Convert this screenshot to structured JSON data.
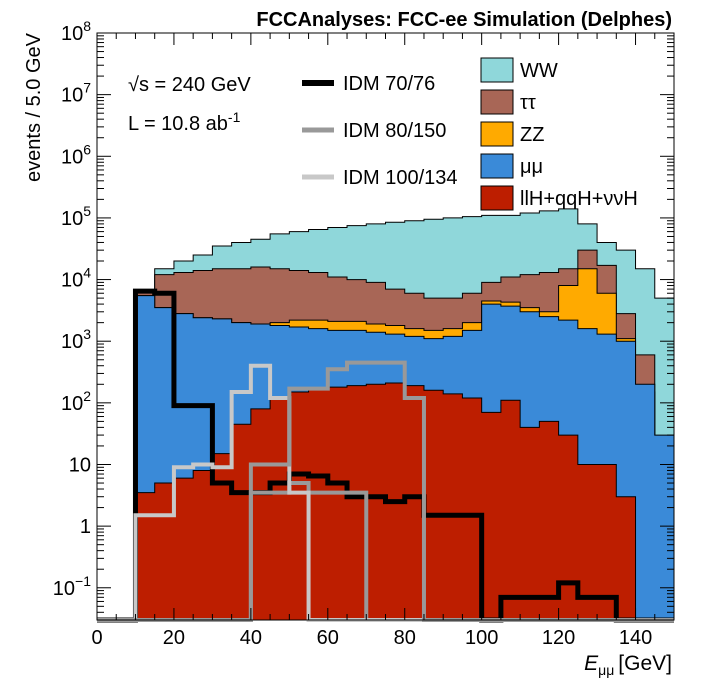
{
  "chart_data": {
    "type": "stacked-histogram",
    "title": "FCCAnalyses: FCC-ee Simulation (Delphes)",
    "xlabel": "E",
    "xlabel_sub": "μμ",
    "xlabel_unit": "[GeV]",
    "ylabel": "events / 5.0 GeV",
    "yscale": "log",
    "xlim": [
      0,
      150
    ],
    "ylim": [
      0.03,
      100000000
    ],
    "bin_width": 5,
    "bin_edges_start": 0,
    "x_ticks": [
      0,
      20,
      40,
      60,
      80,
      100,
      120,
      140
    ],
    "x_tick_labels": [
      "0",
      "20",
      "40",
      "60",
      "80",
      "100",
      "120",
      "140"
    ],
    "y_ticks": [
      {
        "value": 0.1,
        "base": "10",
        "exp": "−1"
      },
      {
        "value": 1,
        "base": "1",
        "exp": ""
      },
      {
        "value": 10,
        "base": "10",
        "exp": ""
      },
      {
        "value": 100,
        "base": "10",
        "exp": "2"
      },
      {
        "value": 1000,
        "base": "10",
        "exp": "3"
      },
      {
        "value": 10000,
        "base": "10",
        "exp": "4"
      },
      {
        "value": 100000,
        "base": "10",
        "exp": "5"
      },
      {
        "value": 1000000,
        "base": "10",
        "exp": "6"
      },
      {
        "value": 10000000,
        "base": "10",
        "exp": "7"
      },
      {
        "value": 100000000,
        "base": "10",
        "exp": "8"
      }
    ],
    "stack_cumulative": [
      {
        "name": "llH+qqH+ννH",
        "color": "#bd1e00",
        "values": [
          0,
          0,
          3.5,
          5,
          6,
          8,
          15,
          45,
          80,
          120,
          150,
          170,
          180,
          190,
          200,
          210,
          190,
          160,
          140,
          120,
          70,
          110,
          40,
          50,
          30,
          10,
          10,
          3,
          0,
          0
        ]
      },
      {
        "name": "μμ",
        "color": "#3a8ad8",
        "values": [
          0,
          0,
          5500,
          3500,
          2800,
          2400,
          2300,
          2000,
          1900,
          1800,
          1700,
          1600,
          1500,
          1500,
          1400,
          1300,
          1200,
          1100,
          1200,
          1500,
          4000,
          3700,
          3000,
          2500,
          2200,
          1600,
          1300,
          1000,
          200,
          30
        ]
      },
      {
        "name": "ZZ",
        "color": "#ffaa00",
        "values": [
          0,
          0,
          5500,
          3500,
          2800,
          2400,
          2300,
          2000,
          1900,
          2000,
          2200,
          2200,
          2100,
          2100,
          1900,
          1800,
          1600,
          1500,
          1600,
          2000,
          4500,
          4300,
          3500,
          3000,
          8000,
          15000,
          6000,
          1100,
          150,
          0.9
        ]
      },
      {
        "name": "ττ",
        "color": "#a86656",
        "values": [
          0,
          0,
          6500,
          12000,
          13000,
          14000,
          15000,
          15000,
          16000,
          15000,
          14000,
          13000,
          11000,
          10000,
          9000,
          7000,
          6000,
          5000,
          5000,
          6000,
          9000,
          11000,
          12000,
          13000,
          15000,
          30000,
          17000,
          2800,
          600,
          20
        ]
      },
      {
        "name": "WW",
        "color": "#8fd7da",
        "values": [
          0,
          0,
          6500,
          15000,
          20000,
          25000,
          35000,
          40000,
          45000,
          55000,
          60000,
          65000,
          70000,
          75000,
          80000,
          85000,
          90000,
          95000,
          100000,
          105000,
          110000,
          110000,
          120000,
          130000,
          140000,
          80000,
          40000,
          30000,
          15000,
          5000
        ]
      }
    ],
    "signals": [
      {
        "name": "IDM 70/76",
        "color": "#000000",
        "width": 5,
        "values": [
          0,
          0,
          6500,
          6000,
          90,
          90,
          5,
          3.5,
          3.5,
          5,
          7,
          6.5,
          5,
          3,
          3,
          2.5,
          3,
          1.5,
          1.5,
          1.5,
          0.03,
          0.07,
          0.07,
          0.07,
          0.12,
          0.07,
          0.07,
          0.03,
          0.03,
          0.03
        ]
      },
      {
        "name": "IDM 80/150",
        "color": "#999999",
        "width": 4,
        "values": [
          0,
          0,
          0,
          0,
          0,
          0,
          0,
          0,
          3.5,
          3.5,
          5,
          3.5,
          3.5,
          3.5,
          0,
          0,
          0,
          0,
          0,
          0,
          0,
          0,
          0,
          0,
          0,
          0,
          0,
          0,
          0,
          0
        ]
      },
      {
        "name": "IDM 100/134",
        "color": "#c8c8c8",
        "width": 4,
        "values": [
          0,
          0,
          1.5,
          1.5,
          9,
          10,
          9,
          150,
          400,
          120,
          3.5,
          0,
          0,
          0,
          0,
          0,
          0,
          0,
          0,
          0,
          0,
          0,
          0,
          0,
          0,
          0,
          0,
          0,
          0,
          0
        ]
      }
    ],
    "signal_80_150_upper": [
      0,
      0,
      0,
      0,
      0,
      0,
      0,
      0,
      10,
      10,
      170,
      170,
      350,
      450,
      450,
      450,
      120,
      0,
      0,
      0,
      0,
      0,
      0,
      0,
      0,
      0,
      0,
      0,
      0,
      0
    ],
    "legend_signals": [
      "IDM 70/76",
      "IDM 80/150",
      "IDM 100/134"
    ],
    "legend_backgrounds": [
      "WW",
      "ττ",
      "ZZ",
      "μμ",
      "llH+qqH+ννH"
    ],
    "annotations": {
      "sqrt_s": "√s = 240 GeV",
      "lumi_prefix": "L = 10.8 ab",
      "lumi_exp": "-1"
    }
  }
}
